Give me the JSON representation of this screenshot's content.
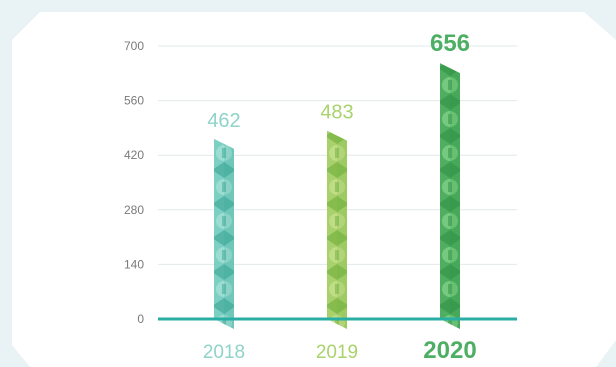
{
  "colors": {
    "background": "#e9f3f6",
    "panel": "#ffffff",
    "axis": "#2aaea4",
    "grid": "#e3e8ea",
    "tick_text": "#7a7a7a"
  },
  "chart_data": {
    "type": "bar",
    "categories": [
      "2018",
      "2019",
      "2020"
    ],
    "values": [
      462,
      483,
      656
    ],
    "yticks": [
      "0",
      "140",
      "280",
      "420",
      "560",
      "700"
    ],
    "ylim": [
      0,
      700
    ],
    "grid": true,
    "legend": "none",
    "series_colors": [
      {
        "base": "#7ccfc3",
        "dark": "#3aa596",
        "light": "#a3dfd4",
        "label": "#8fd3c9"
      },
      {
        "base": "#a8d16b",
        "dark": "#6fae3b",
        "light": "#c3e089",
        "label": "#a9d36d"
      },
      {
        "base": "#4fae5f",
        "dark": "#2f8f45",
        "light": "#7ccf85",
        "label": "#4caf63"
      }
    ],
    "highlight_index": 2
  }
}
